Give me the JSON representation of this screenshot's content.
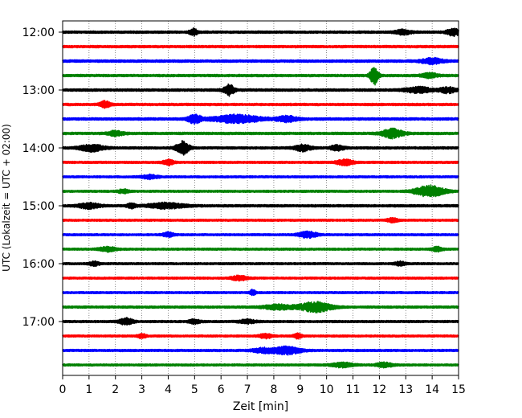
{
  "chart_data": {
    "type": "line",
    "title": "",
    "xlabel": "Zeit  [min]",
    "ylabel": "UTC (Lokalzeit = UTC + 02:00)",
    "xlim": [
      0,
      15
    ],
    "x_ticks": [
      "0",
      "1",
      "2",
      "3",
      "4",
      "5",
      "6",
      "7",
      "8",
      "9",
      "10",
      "11",
      "12",
      "13",
      "14",
      "15"
    ],
    "y_tick_labels": [
      "12:00",
      "13:00",
      "14:00",
      "15:00",
      "16:00",
      "17:00"
    ],
    "grid": "vertical dotted at each minute",
    "trace_interval_minutes": 15,
    "color_cycle": [
      "#000000",
      "#ff0000",
      "#0000ff",
      "#008000"
    ],
    "traces": [
      {
        "start": "12:00",
        "color": "#000000",
        "noise": 0.16,
        "events": [
          {
            "t": 4.95,
            "amp": 0.45,
            "w": 0.15
          },
          {
            "t": 14.8,
            "amp": 0.45,
            "w": 0.25
          },
          {
            "t": 12.9,
            "amp": 0.3,
            "w": 0.3
          }
        ]
      },
      {
        "start": "12:15",
        "color": "#ff0000",
        "noise": 0.16,
        "events": []
      },
      {
        "start": "12:30",
        "color": "#0000ff",
        "noise": 0.17,
        "events": [
          {
            "t": 14.0,
            "amp": 0.35,
            "w": 0.4
          }
        ]
      },
      {
        "start": "12:45",
        "color": "#008000",
        "noise": 0.16,
        "events": [
          {
            "t": 11.8,
            "amp": 1.2,
            "w": 0.15
          },
          {
            "t": 13.9,
            "amp": 0.3,
            "w": 0.3
          }
        ]
      },
      {
        "start": "13:00",
        "color": "#000000",
        "noise": 0.17,
        "events": [
          {
            "t": 6.3,
            "amp": 0.7,
            "w": 0.2
          },
          {
            "t": 13.5,
            "amp": 0.35,
            "w": 0.5
          },
          {
            "t": 14.6,
            "amp": 0.35,
            "w": 0.3
          }
        ]
      },
      {
        "start": "13:15",
        "color": "#ff0000",
        "noise": 0.16,
        "events": [
          {
            "t": 1.6,
            "amp": 0.4,
            "w": 0.2
          }
        ]
      },
      {
        "start": "13:30",
        "color": "#0000ff",
        "noise": 0.17,
        "events": [
          {
            "t": 5.0,
            "amp": 0.55,
            "w": 0.25
          },
          {
            "t": 6.6,
            "amp": 0.5,
            "w": 0.9
          },
          {
            "t": 8.5,
            "amp": 0.35,
            "w": 0.4
          }
        ]
      },
      {
        "start": "13:45",
        "color": "#008000",
        "noise": 0.16,
        "events": [
          {
            "t": 2.0,
            "amp": 0.3,
            "w": 0.3
          },
          {
            "t": 12.5,
            "amp": 0.6,
            "w": 0.4
          }
        ]
      },
      {
        "start": "14:00",
        "color": "#000000",
        "noise": 0.16,
        "events": [
          {
            "t": 1.1,
            "amp": 0.45,
            "w": 0.45
          },
          {
            "t": 4.55,
            "amp": 0.85,
            "w": 0.25
          },
          {
            "t": 9.1,
            "amp": 0.4,
            "w": 0.3
          },
          {
            "t": 10.4,
            "amp": 0.35,
            "w": 0.25
          }
        ]
      },
      {
        "start": "14:15",
        "color": "#ff0000",
        "noise": 0.15,
        "events": [
          {
            "t": 4.0,
            "amp": 0.35,
            "w": 0.2
          },
          {
            "t": 10.7,
            "amp": 0.4,
            "w": 0.3
          }
        ]
      },
      {
        "start": "14:30",
        "color": "#0000ff",
        "noise": 0.14,
        "events": [
          {
            "t": 3.3,
            "amp": 0.25,
            "w": 0.3
          }
        ]
      },
      {
        "start": "14:45",
        "color": "#008000",
        "noise": 0.14,
        "events": [
          {
            "t": 13.9,
            "amp": 0.75,
            "w": 0.55
          },
          {
            "t": 2.3,
            "amp": 0.25,
            "w": 0.2
          }
        ]
      },
      {
        "start": "15:00",
        "color": "#000000",
        "noise": 0.16,
        "events": [
          {
            "t": 1.0,
            "amp": 0.35,
            "w": 0.4
          },
          {
            "t": 3.9,
            "amp": 0.35,
            "w": 0.7
          },
          {
            "t": 2.6,
            "amp": 0.3,
            "w": 0.15
          }
        ]
      },
      {
        "start": "15:15",
        "color": "#ff0000",
        "noise": 0.14,
        "events": [
          {
            "t": 12.5,
            "amp": 0.25,
            "w": 0.2
          }
        ]
      },
      {
        "start": "15:30",
        "color": "#0000ff",
        "noise": 0.14,
        "events": [
          {
            "t": 4.0,
            "amp": 0.3,
            "w": 0.2
          },
          {
            "t": 9.3,
            "amp": 0.4,
            "w": 0.35
          }
        ]
      },
      {
        "start": "15:45",
        "color": "#008000",
        "noise": 0.14,
        "events": [
          {
            "t": 1.7,
            "amp": 0.3,
            "w": 0.3
          },
          {
            "t": 14.2,
            "amp": 0.3,
            "w": 0.2
          }
        ]
      },
      {
        "start": "16:00",
        "color": "#000000",
        "noise": 0.14,
        "events": [
          {
            "t": 1.2,
            "amp": 0.25,
            "w": 0.2
          },
          {
            "t": 12.8,
            "amp": 0.25,
            "w": 0.2
          }
        ]
      },
      {
        "start": "16:15",
        "color": "#ff0000",
        "noise": 0.14,
        "events": [
          {
            "t": 6.7,
            "amp": 0.3,
            "w": 0.3
          }
        ]
      },
      {
        "start": "16:30",
        "color": "#0000ff",
        "noise": 0.14,
        "events": [
          {
            "t": 7.2,
            "amp": 0.4,
            "w": 0.1
          }
        ]
      },
      {
        "start": "16:45",
        "color": "#008000",
        "noise": 0.15,
        "events": [
          {
            "t": 9.6,
            "amp": 0.65,
            "w": 0.6
          },
          {
            "t": 8.2,
            "amp": 0.3,
            "w": 0.6
          }
        ]
      },
      {
        "start": "17:00",
        "color": "#000000",
        "noise": 0.15,
        "events": [
          {
            "t": 2.4,
            "amp": 0.45,
            "w": 0.25
          },
          {
            "t": 5.0,
            "amp": 0.25,
            "w": 0.2
          },
          {
            "t": 7.0,
            "amp": 0.25,
            "w": 0.3
          }
        ]
      },
      {
        "start": "17:15",
        "color": "#ff0000",
        "noise": 0.14,
        "events": [
          {
            "t": 3.0,
            "amp": 0.3,
            "w": 0.15
          },
          {
            "t": 7.7,
            "amp": 0.3,
            "w": 0.25
          },
          {
            "t": 8.9,
            "amp": 0.3,
            "w": 0.15
          }
        ]
      },
      {
        "start": "17:30",
        "color": "#0000ff",
        "noise": 0.15,
        "events": [
          {
            "t": 8.5,
            "amp": 0.5,
            "w": 0.5
          },
          {
            "t": 7.6,
            "amp": 0.3,
            "w": 0.4
          }
        ]
      },
      {
        "start": "17:45",
        "color": "#008000",
        "noise": 0.14,
        "events": [
          {
            "t": 10.6,
            "amp": 0.3,
            "w": 0.4
          },
          {
            "t": 12.2,
            "amp": 0.3,
            "w": 0.3
          }
        ]
      }
    ]
  }
}
